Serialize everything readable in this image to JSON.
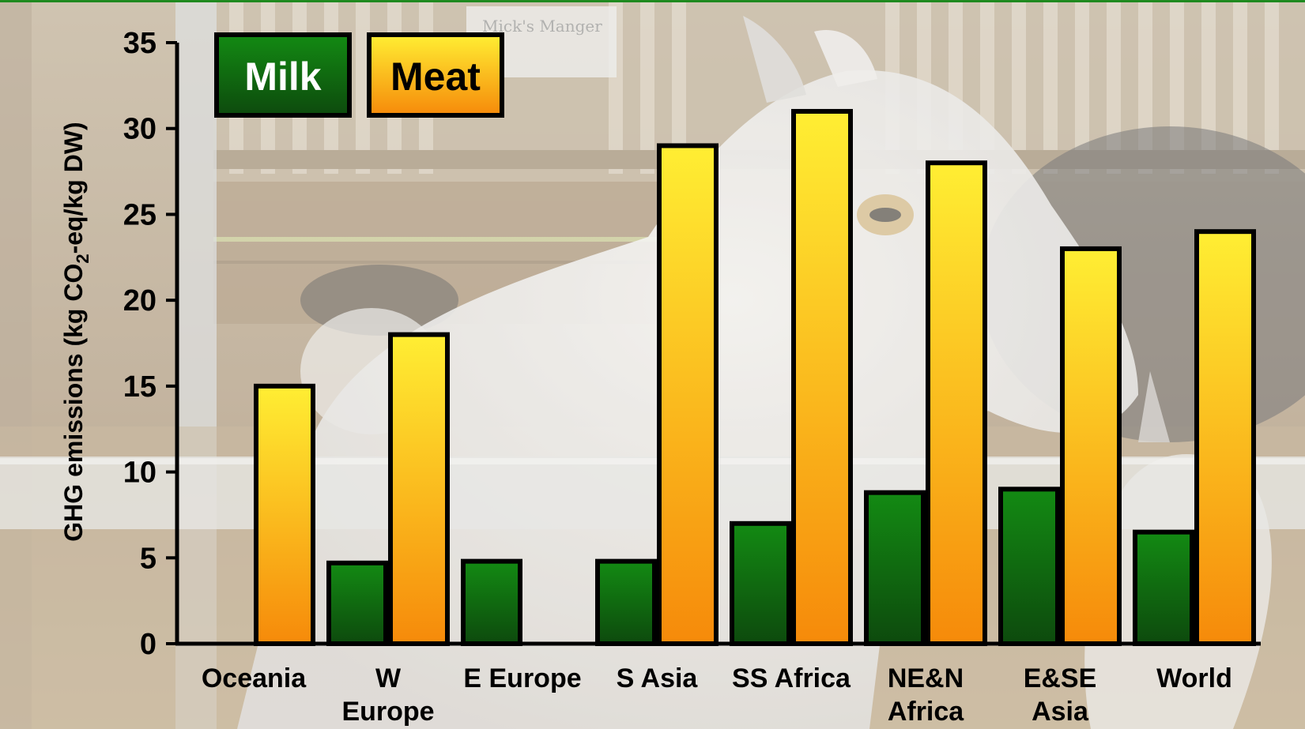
{
  "background": {
    "photo_subject": "goats-in-barn",
    "sign_text": "Mick's Manger"
  },
  "colors": {
    "milk_top": "#138a13",
    "milk_bottom": "#0d4a0d",
    "meat_top": "#ffee33",
    "meat_bottom": "#f68a0a",
    "bar_stroke": "#000000",
    "accent_line": "#1f8a1f"
  },
  "chart_data": {
    "type": "bar",
    "categories": [
      [
        "Oceania"
      ],
      [
        "W",
        "Europe"
      ],
      [
        "E Europe"
      ],
      [
        "S Asia"
      ],
      [
        "SS Africa"
      ],
      [
        "NE&N",
        "Africa"
      ],
      [
        "E&SE",
        "Asia"
      ],
      [
        "World"
      ]
    ],
    "series": [
      {
        "name": "Milk",
        "values": [
          null,
          4.7,
          4.8,
          4.8,
          7.0,
          8.8,
          9.0,
          6.5
        ]
      },
      {
        "name": "Meat",
        "values": [
          15,
          18,
          null,
          29,
          31,
          28,
          23,
          24
        ]
      }
    ],
    "ylabel": {
      "prefix": "GHG emissions (kg CO",
      "subscript": "2",
      "suffix": "-eq/kg DW)"
    },
    "ylim": [
      0,
      35
    ],
    "yticks": [
      "0",
      "5",
      "10",
      "15",
      "20",
      "25",
      "30",
      "35"
    ],
    "grid": false,
    "legend_position": "top-left"
  }
}
